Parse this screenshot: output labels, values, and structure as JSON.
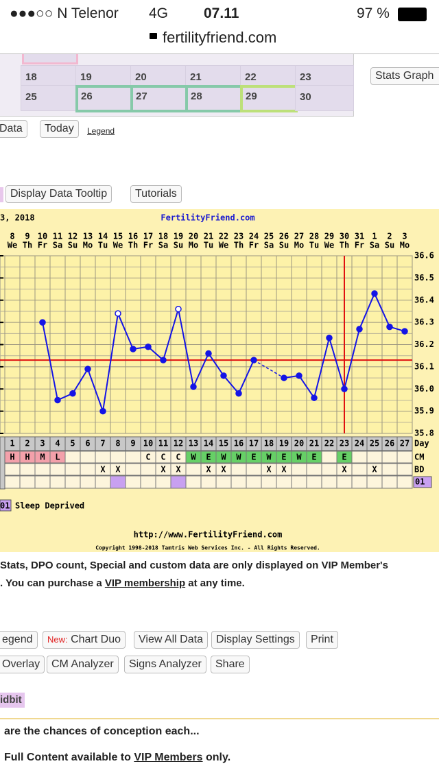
{
  "status_bar": {
    "carrier": "●●●○○ N Telenor",
    "network": "4G",
    "time": "07.11",
    "battery": "97 %",
    "url": "fertilityfriend.com"
  },
  "calendar": {
    "rows": [
      [
        "18",
        "19",
        "20",
        "21",
        "22",
        "23"
      ],
      [
        "25",
        "26",
        "27",
        "28",
        "29",
        "30"
      ]
    ],
    "side_button": "Stats Graph"
  },
  "toolbar": {
    "buttons": [
      "Data",
      "Today"
    ],
    "legend_link": "Legend"
  },
  "chart_toolbar": [
    "Display Data Tooltip",
    "Tutorials"
  ],
  "chart_data": {
    "type": "line",
    "title": "3, 2018",
    "site": "FertilityFriend.com",
    "days": [
      1,
      2,
      3,
      4,
      5,
      6,
      7,
      8,
      9,
      10,
      11,
      12,
      13,
      14,
      15,
      16,
      17,
      18,
      19,
      20,
      21,
      22,
      23,
      24,
      25,
      26,
      27
    ],
    "dates": [
      8,
      9,
      10,
      11,
      12,
      13,
      14,
      15,
      16,
      17,
      18,
      19,
      20,
      21,
      22,
      23,
      24,
      25,
      26,
      27,
      28,
      29,
      30,
      31,
      1,
      2,
      3
    ],
    "weekdays": [
      "We",
      "Th",
      "Fr",
      "Sa",
      "Su",
      "Mo",
      "Tu",
      "We",
      "Th",
      "Fr",
      "Sa",
      "Su",
      "Mo",
      "Tu",
      "We",
      "Th",
      "Fr",
      "Sa",
      "Su",
      "Mo",
      "Tu",
      "We",
      "Th",
      "Fr",
      "Sa",
      "Su",
      "Mo"
    ],
    "values": [
      null,
      null,
      36.3,
      35.95,
      35.98,
      36.09,
      35.9,
      36.34,
      36.18,
      36.19,
      36.13,
      36.36,
      36.01,
      36.16,
      36.06,
      35.98,
      36.13,
      null,
      36.05,
      36.06,
      35.96,
      36.23,
      36.0,
      36.27,
      36.43,
      36.28,
      36.26
    ],
    "color": "#1414e6",
    "hollow_days": [
      8,
      12
    ],
    "coverline": 36.13,
    "ovulation_day": 23,
    "marker_color": "#e01010",
    "ylim": [
      35.8,
      36.6
    ],
    "yticks": [
      35.8,
      35.9,
      {
        "value": 36,
        "label": "36.0"
      },
      36.1,
      36.2,
      36.3,
      36.4,
      36.5,
      36.6
    ],
    "grid": true,
    "day_label": "Day",
    "cm_label": "CM",
    "bd_label": "BD",
    "cm": [
      "H",
      "H",
      "M",
      "L",
      null,
      null,
      null,
      null,
      null,
      "C",
      "C",
      "C",
      "W",
      "E",
      "W",
      "W",
      "E",
      "W",
      "E",
      "W",
      "E",
      null,
      "E",
      null,
      null,
      null,
      null
    ],
    "bd": [
      null,
      null,
      null,
      null,
      null,
      null,
      "X",
      "X",
      null,
      null,
      "X",
      "X",
      null,
      "X",
      "X",
      null,
      null,
      "X",
      "X",
      null,
      null,
      null,
      "X",
      null,
      "X",
      null,
      null
    ],
    "special_days": [
      8,
      12
    ],
    "special_code": "01",
    "special_label": "Sleep Deprived",
    "footer_url": "http://www.FertilityFriend.com",
    "copyright": "Copyright 1998-2018 Tamtris Web Services Inc. - All Rights Reserved."
  },
  "notice": {
    "line1": "Stats, DPO count, Special and custom data are only displayed on VIP Member's",
    "line2_before": ". You can purchase a ",
    "line2_link": "VIP membership",
    "line2_after": " at any time."
  },
  "buttons_row1": [
    "egend",
    "Chart Duo",
    "View All Data",
    "Display Settings",
    "Print"
  ],
  "new_label": "New:",
  "buttons_row2": [
    "Overlay",
    "CM Analyzer",
    "Signs Analyzer",
    "Share"
  ],
  "tidbit": "idbit",
  "article": {
    "question": "are the chances of conception each...",
    "notice_before": "Full Content available to ",
    "notice_link": "VIP Members",
    "notice_after": " only."
  }
}
